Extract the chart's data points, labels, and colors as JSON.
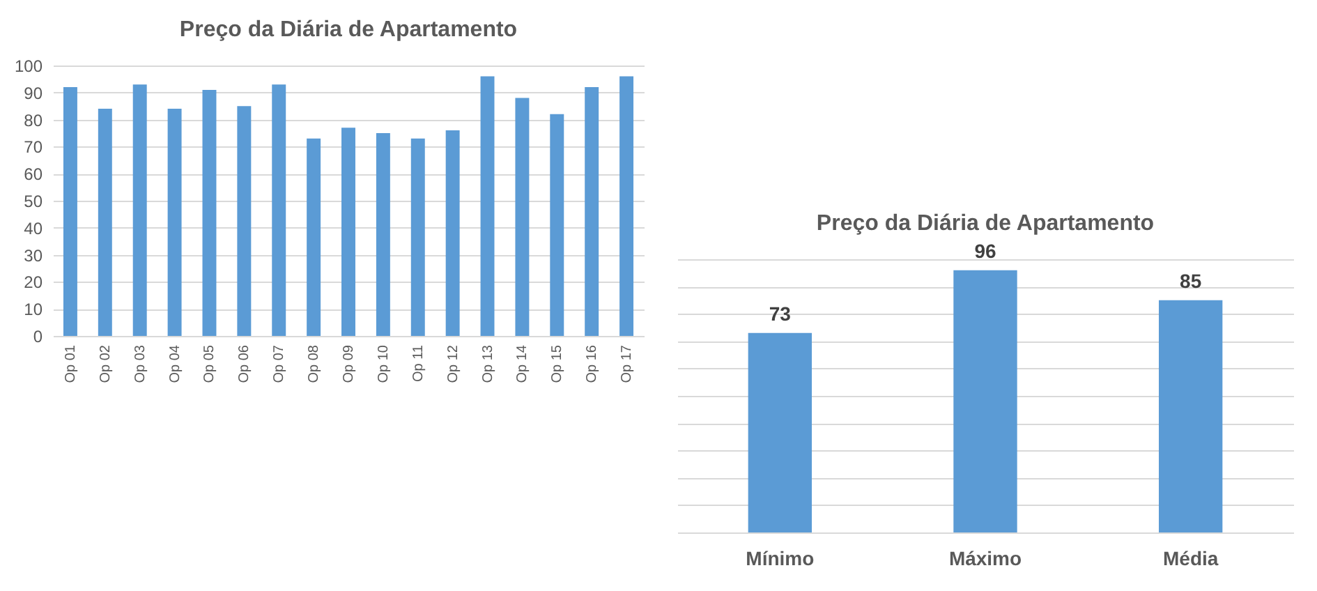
{
  "chart_data": [
    {
      "type": "bar",
      "title": "Preço da Diária de Apartamento",
      "categories": [
        "Op 01",
        "Op 02",
        "Op 03",
        "Op 04",
        "Op 05",
        "Op 06",
        "Op 07",
        "Op 08",
        "Op 09",
        "Op 10",
        "Op 11",
        "Op 12",
        "Op 13",
        "Op 14",
        "Op 15",
        "Op 16",
        "Op 17"
      ],
      "values": [
        92,
        84,
        93,
        84,
        91,
        85,
        93,
        73,
        77,
        75,
        73,
        76,
        96,
        88,
        82,
        92,
        96
      ],
      "color": "#5b9bd5",
      "ylim": [
        0,
        100
      ],
      "yticks": [
        0,
        10,
        20,
        30,
        40,
        50,
        60,
        70,
        80,
        90,
        100
      ],
      "grid": "y"
    },
    {
      "type": "bar",
      "title": "Preço da Diária de Apartamento",
      "categories": [
        "Mínimo",
        "Máximo",
        "Média"
      ],
      "values": [
        73,
        96,
        85
      ],
      "color": "#5b9bd5",
      "data_labels": true,
      "ylim": [
        0,
        100
      ],
      "yticks": [
        0,
        10,
        20,
        30,
        40,
        50,
        60,
        70,
        80,
        90,
        100
      ],
      "grid": "y",
      "tick_labels": "x"
    }
  ]
}
